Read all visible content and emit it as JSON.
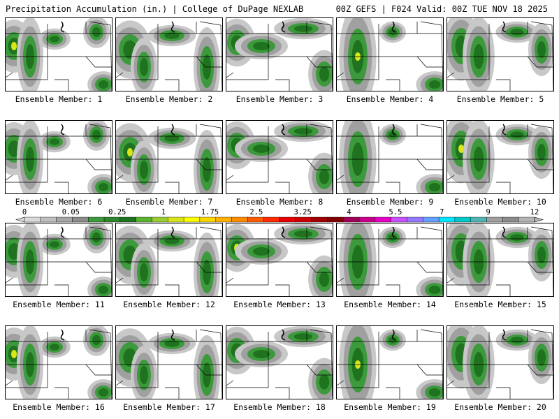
{
  "header": {
    "left": "Precipitation Accumulation (in.) | College of DuPage NEXLAB",
    "right": "00Z GEFS | F024 Valid: 00Z TUE NOV 18 2025"
  },
  "colorbar": {
    "labels": [
      "0",
      "0.05",
      "0.25",
      "1",
      "1.75",
      "2.5",
      "3.25",
      "4",
      "5.5",
      "7",
      "9",
      "12"
    ],
    "colors": [
      "#d9d9d9",
      "#bfbfbf",
      "#a6a6a6",
      "#8c8c8c",
      "#3c9a3c",
      "#2d862d",
      "#1f731f",
      "#5ab42d",
      "#9acd32",
      "#d8e61a",
      "#ffff00",
      "#ffd700",
      "#ffb000",
      "#ff8c00",
      "#ff5a00",
      "#ff2a00",
      "#e60000",
      "#c80000",
      "#a00000",
      "#800000",
      "#a0005a",
      "#c8008c",
      "#e600c8",
      "#c850ff",
      "#9678ff",
      "#64a0ff",
      "#00e6ff",
      "#00c8c8",
      "#50b4b4",
      "#a0a0a0",
      "#8c8c8c",
      "#b4b4b4"
    ]
  },
  "panels": [
    {
      "label": "Ensemble Member: 1"
    },
    {
      "label": "Ensemble Member: 2"
    },
    {
      "label": "Ensemble Member: 3"
    },
    {
      "label": "Ensemble Member: 4"
    },
    {
      "label": "Ensemble Member: 5"
    },
    {
      "label": "Ensemble Member: 6"
    },
    {
      "label": "Ensemble Member: 7"
    },
    {
      "label": "Ensemble Member: 8"
    },
    {
      "label": "Ensemble Member: 9"
    },
    {
      "label": "Ensemble Member: 10"
    },
    {
      "label": "Ensemble Member: 11"
    },
    {
      "label": "Ensemble Member: 12"
    },
    {
      "label": "Ensemble Member: 13"
    },
    {
      "label": "Ensemble Member: 14"
    },
    {
      "label": "Ensemble Member: 15"
    },
    {
      "label": "Ensemble Member: 16"
    },
    {
      "label": "Ensemble Member: 17"
    },
    {
      "label": "Ensemble Member: 18"
    },
    {
      "label": "Ensemble Member: 19"
    },
    {
      "label": "Ensemble Member: 20"
    }
  ]
}
